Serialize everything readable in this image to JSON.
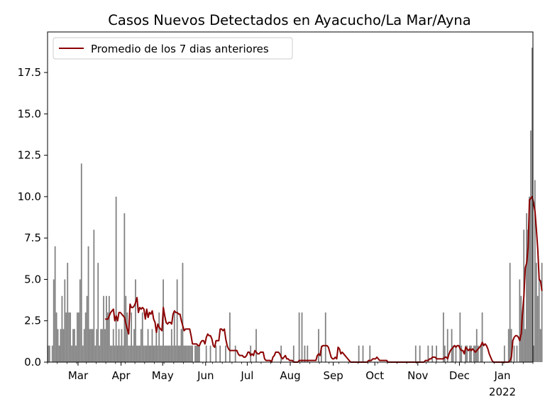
{
  "chart_data": {
    "type": "bar",
    "title": "Casos Nuevos Detectados en Ayacucho/La Mar/Ayna",
    "xlabel": "",
    "ylabel": "",
    "ylim": [
      0,
      19.95
    ],
    "yticks": [
      "0.0",
      "2.5",
      "5.0",
      "7.5",
      "10.0",
      "12.5",
      "15.0",
      "17.5"
    ],
    "x_range_days": [
      0,
      350
    ],
    "x_ticks": [
      {
        "day": 22,
        "label": "Mar"
      },
      {
        "day": 53,
        "label": "Apr"
      },
      {
        "day": 83,
        "label": "May"
      },
      {
        "day": 114,
        "label": "Jun"
      },
      {
        "day": 144,
        "label": "Jul"
      },
      {
        "day": 175,
        "label": "Aug"
      },
      {
        "day": 206,
        "label": "Sep"
      },
      {
        "day": 236,
        "label": "Oct"
      },
      {
        "day": 267,
        "label": "Nov"
      },
      {
        "day": 297,
        "label": "Dec"
      },
      {
        "day": 328,
        "label": "Jan",
        "sublabel": "2022"
      }
    ],
    "legend": {
      "label": "Promedio de los 7 dias anteriores",
      "position": "top-left"
    },
    "colors": {
      "bars": "#808080",
      "line": "#8b0000"
    },
    "series": [
      {
        "kind": "bar",
        "values": [
          1,
          1,
          0,
          1,
          5,
          7,
          3,
          2,
          1,
          2,
          4,
          2,
          5,
          3,
          6,
          3,
          3,
          1,
          2,
          2,
          1,
          3,
          3,
          5,
          12,
          1,
          2,
          3,
          4,
          7,
          2,
          2,
          2,
          8,
          1,
          2,
          6,
          1,
          2,
          2,
          4,
          2,
          4,
          3,
          4,
          1,
          1,
          2,
          1,
          10,
          1,
          2,
          1,
          2,
          1,
          9,
          4,
          3,
          1,
          1,
          3,
          1,
          2,
          5,
          1,
          1,
          1,
          2,
          3,
          1,
          1,
          1,
          2,
          1,
          1,
          2,
          1,
          1,
          2,
          1,
          3,
          1,
          1,
          5,
          1,
          1,
          1,
          1,
          1,
          2,
          1,
          3,
          1,
          5,
          1,
          1,
          2,
          6,
          1,
          1,
          1,
          1,
          1,
          1,
          1,
          0,
          1,
          1,
          1,
          1,
          0,
          0,
          0,
          0,
          1,
          0,
          0,
          1,
          0,
          0,
          0,
          1,
          0,
          0,
          1,
          0,
          0,
          0,
          1,
          0,
          0,
          3,
          0,
          0,
          0,
          1,
          0,
          0,
          0,
          0,
          0,
          0,
          0,
          0,
          0,
          0,
          1,
          0,
          0,
          0,
          2,
          0,
          0,
          0,
          0,
          0,
          0,
          0,
          0,
          0,
          0,
          0,
          0,
          0,
          0,
          0,
          0,
          0,
          1,
          0,
          0,
          0,
          0,
          0,
          0,
          0,
          0,
          1,
          0,
          0,
          0,
          3,
          0,
          3,
          0,
          1,
          0,
          1,
          0,
          0,
          0,
          0,
          0,
          0,
          0,
          2,
          0,
          1,
          0,
          0,
          3,
          0,
          0,
          0,
          0,
          0,
          0,
          0,
          0,
          0,
          0,
          0,
          0,
          0,
          0,
          0,
          0,
          0,
          0,
          0,
          0,
          0,
          0,
          0,
          1,
          0,
          0,
          1,
          0,
          0,
          0,
          0,
          1,
          0,
          0,
          0,
          0,
          0,
          0,
          0,
          0,
          0,
          0,
          0,
          0,
          0,
          0,
          0,
          0,
          0,
          0,
          0,
          0,
          0,
          0,
          0,
          0,
          0,
          0,
          0,
          0,
          0,
          0,
          0,
          0,
          1,
          0,
          0,
          1,
          0,
          0,
          0,
          0,
          0,
          1,
          0,
          0,
          1,
          0,
          0,
          1,
          0,
          0,
          0,
          0,
          3,
          1,
          0,
          2,
          0,
          0,
          2,
          1,
          0,
          1,
          0,
          0,
          3,
          1,
          0,
          0,
          1,
          1,
          0,
          1,
          1,
          0,
          1,
          1,
          2,
          1,
          0,
          1,
          3,
          0,
          0,
          0,
          0,
          0,
          0,
          0,
          0,
          0,
          0,
          0,
          0,
          0,
          0,
          0,
          1,
          0,
          0,
          2,
          6,
          2,
          0,
          1,
          0,
          1,
          0,
          5,
          4,
          3,
          8,
          2,
          9,
          8,
          10,
          14,
          19,
          1,
          11,
          6,
          4,
          5,
          2,
          6
        ]
      },
      {
        "kind": "line",
        "name": "Promedio de los 7 dias anteriores",
        "values": [
          2.6,
          2.6,
          2.6,
          2.8,
          3.0,
          3.1,
          3.2,
          2.5,
          2.8,
          2.5,
          3.0,
          3.0,
          2.9,
          2.8,
          2.7,
          2.3,
          2.0,
          1.7,
          3.5,
          3.3,
          3.3,
          3.4,
          3.6,
          3.9,
          3.0,
          3.3,
          3.2,
          3.3,
          3.2,
          2.6,
          3.2,
          2.7,
          3.0,
          2.9,
          3.1,
          2.6,
          2.4,
          1.8,
          2.3,
          2.1,
          2.0,
          1.9,
          3.3,
          2.8,
          2.4,
          2.3,
          2.4,
          2.4,
          2.3,
          2.9,
          3.1,
          3.0,
          3.0,
          2.9,
          2.9,
          2.5,
          2.2,
          1.9,
          2.0,
          2.0,
          2.0,
          2.0,
          1.6,
          1.1,
          1.1,
          1.1,
          1.1,
          1.0,
          1.0,
          1.2,
          1.3,
          1.3,
          1.1,
          1.5,
          1.7,
          1.6,
          1.6,
          1.4,
          1.0,
          0.9,
          1.3,
          1.3,
          1.3,
          2.0,
          2.0,
          1.9,
          2.0,
          1.4,
          1.0,
          0.8,
          0.7,
          0.7,
          0.7,
          0.7,
          0.7,
          0.7,
          0.5,
          0.4,
          0.4,
          0.4,
          0.3,
          0.3,
          0.4,
          0.6,
          0.6,
          0.4,
          0.5,
          0.4,
          0.7,
          0.6,
          0.5,
          0.5,
          0.6,
          0.6,
          0.6,
          0.2,
          0.1,
          0.1,
          0.1,
          0.1,
          0.0,
          0.3,
          0.4,
          0.6,
          0.6,
          0.6,
          0.5,
          0.3,
          0.2,
          0.3,
          0.4,
          0.2,
          0.2,
          0.1,
          0.1,
          0.1,
          0.0,
          0.0,
          0.0,
          0.0,
          0.1,
          0.1,
          0.1,
          0.1,
          0.1,
          0.1,
          0.1,
          0.1,
          0.1,
          0.1,
          0.1,
          0.1,
          0.1,
          0.4,
          0.5,
          0.4,
          0.9,
          1.0,
          1.0,
          1.0,
          1.0,
          0.9,
          0.6,
          0.3,
          0.2,
          0.2,
          0.3,
          0.2,
          0.9,
          0.8,
          0.5,
          0.6,
          0.5,
          0.4,
          0.3,
          0.2,
          0.1,
          0.0,
          0.0,
          0.0,
          0.0,
          0.0,
          0.0,
          0.0,
          0.0,
          0.0,
          0.0,
          0.0,
          0.0,
          0.0,
          0.1,
          0.1,
          0.1,
          0.2,
          0.2,
          0.2,
          0.3,
          0.2,
          0.1,
          0.1,
          0.1,
          0.1,
          0.1,
          0.1,
          0.0,
          0.0,
          0.0,
          0.0,
          0.0,
          0.0,
          0.0,
          0.0,
          0.0,
          0.0,
          0.0,
          0.0,
          0.0,
          0.0,
          0.0,
          0.0,
          0.0,
          0.0,
          0.0,
          0.0,
          0.0,
          0.0,
          0.0,
          0.0,
          0.0,
          0.0,
          0.0,
          0.1,
          0.1,
          0.1,
          0.2,
          0.2,
          0.3,
          0.3,
          0.3,
          0.2,
          0.2,
          0.2,
          0.2,
          0.2,
          0.2,
          0.3,
          0.3,
          0.2,
          0.5,
          0.7,
          0.8,
          0.9,
          1.0,
          0.9,
          1.0,
          1.0,
          0.8,
          0.7,
          0.7,
          0.5,
          0.9,
          0.8,
          0.7,
          0.8,
          0.7,
          0.8,
          0.7,
          0.6,
          0.7,
          0.8,
          0.9,
          1.0,
          1.2,
          1.0,
          1.1,
          1.0,
          0.8,
          0.5,
          0.3,
          0.1,
          0.0,
          0.0,
          0.0,
          0.0,
          0.0,
          0.0,
          0.0,
          0.0,
          0.0,
          0.0,
          0.0,
          0.0,
          0.1,
          0.3,
          1.3,
          1.5,
          1.6,
          1.6,
          1.5,
          1.3,
          1.7,
          3.0,
          4.0,
          5.7,
          6.0,
          6.9,
          9.8,
          9.9,
          10.0,
          9.6,
          9.1,
          8.0,
          6.8,
          5.0,
          4.9,
          4.3
        ]
      }
    ]
  }
}
